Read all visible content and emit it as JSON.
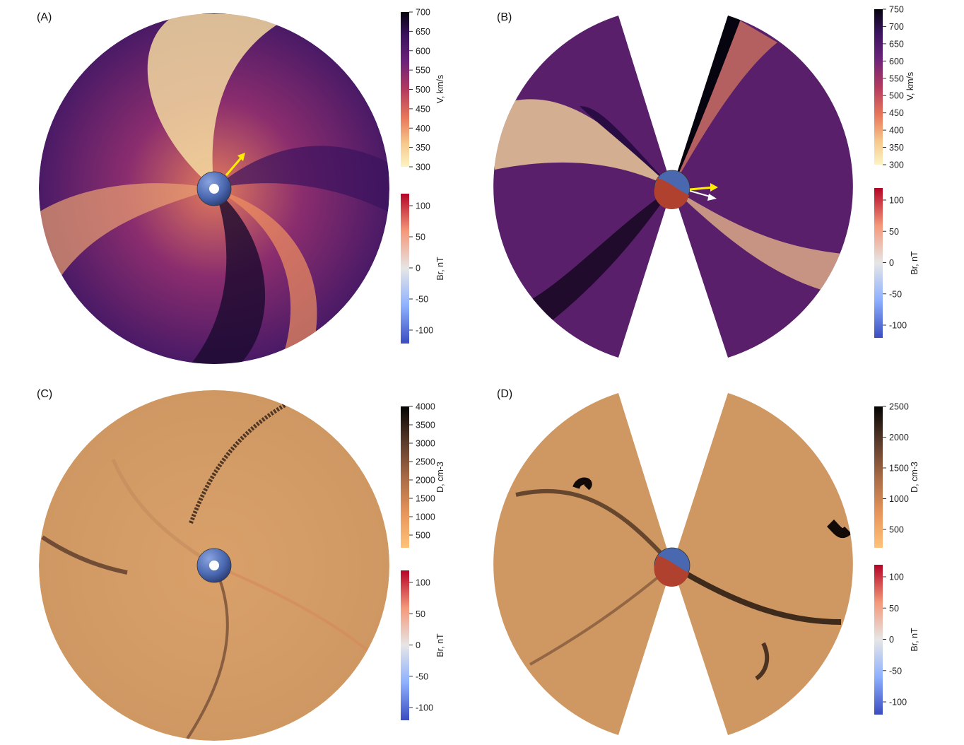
{
  "panels": [
    {
      "letter": "(A)",
      "shape": "disk",
      "field": "velocity",
      "colorbars": [
        {
          "title": "V, km/s",
          "ticks": [
            "700",
            "650",
            "600",
            "550",
            "500",
            "450",
            "400",
            "350",
            "300"
          ],
          "scale": "magma"
        },
        {
          "title": "Br, nT",
          "ticks": [
            "100",
            "50",
            "0",
            "-50",
            "-100"
          ],
          "scale": "coolwarm"
        }
      ],
      "arrows": [
        {
          "color": "#ffee00"
        }
      ]
    },
    {
      "letter": "(B)",
      "shape": "bowtie",
      "field": "velocity",
      "colorbars": [
        {
          "title": "V, km/s",
          "ticks": [
            "750",
            "700",
            "650",
            "600",
            "550",
            "500",
            "450",
            "400",
            "350",
            "300"
          ],
          "scale": "magma"
        },
        {
          "title": "Br, nT",
          "ticks": [
            "100",
            "50",
            "0",
            "-50",
            "-100"
          ],
          "scale": "coolwarm"
        }
      ],
      "arrows": [
        {
          "color": "#ffee00"
        },
        {
          "color": "#ffffff"
        }
      ]
    },
    {
      "letter": "(C)",
      "shape": "disk",
      "field": "density",
      "colorbars": [
        {
          "title": "D, cm-3",
          "ticks": [
            "4000",
            "3500",
            "3000",
            "2500",
            "2000",
            "1500",
            "1000",
            "500"
          ],
          "scale": "copper"
        },
        {
          "title": "Br, nT",
          "ticks": [
            "100",
            "50",
            "0",
            "-50",
            "-100"
          ],
          "scale": "coolwarm"
        }
      ],
      "arrows": []
    },
    {
      "letter": "(D)",
      "shape": "bowtie",
      "field": "density",
      "colorbars": [
        {
          "title": "D, cm-3",
          "ticks": [
            "2500",
            "2000",
            "1500",
            "1000",
            "500"
          ],
          "scale": "copper"
        },
        {
          "title": "Br, nT",
          "ticks": [
            "100",
            "50",
            "0",
            "-50",
            "-100"
          ],
          "scale": "coolwarm"
        }
      ],
      "arrows": []
    }
  ],
  "colors": {
    "sphere": "#4a68b0",
    "sphere_red": "#b0412e",
    "velocity_bg": "#5a1f6a",
    "density_bg": "#cf9863"
  }
}
